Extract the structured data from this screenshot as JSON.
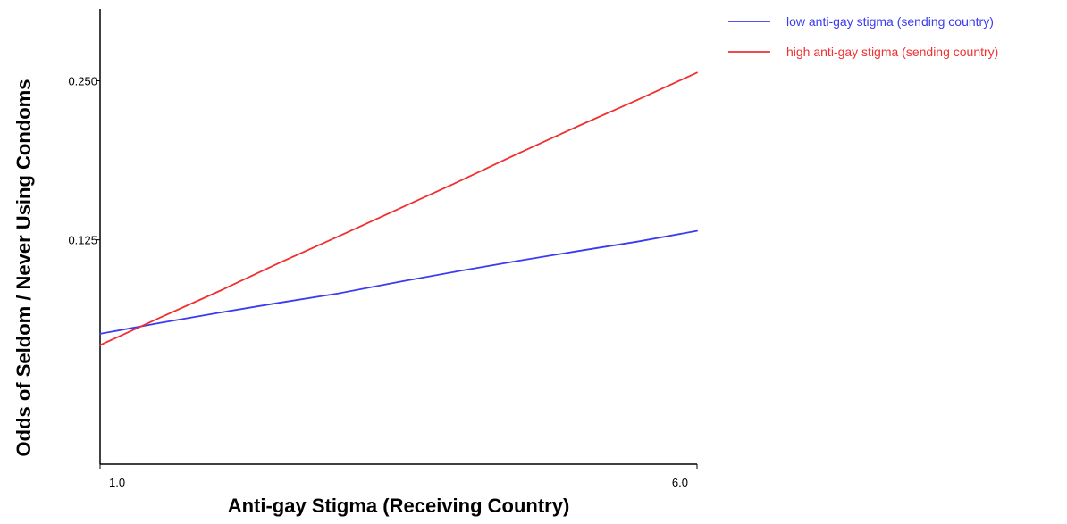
{
  "chart_data": {
    "type": "line",
    "title": "",
    "xlabel": "Anti-gay Stigma (Receiving Country)",
    "ylabel": "Odds of Seldom / Never Using Condoms",
    "xlim": [
      1.0,
      6.0
    ],
    "ylim": [
      0.047,
      0.342
    ],
    "y_scale": "log",
    "x_ticks": [
      {
        "value": 1.0,
        "label": "1.0"
      },
      {
        "value": 6.0,
        "label": "6.0"
      }
    ],
    "y_ticks": [
      {
        "value": 0.125,
        "label": "0.125"
      },
      {
        "value": 0.25,
        "label": "0.250"
      }
    ],
    "grid": false,
    "legend_position": "top-right",
    "series": [
      {
        "name": "low anti-gay stigma (sending country)",
        "color": "#3b3bf0",
        "x": [
          1.0,
          1.5,
          2.0,
          2.5,
          3.0,
          3.5,
          4.0,
          4.5,
          5.0,
          5.5,
          6.0
        ],
        "y": [
          0.083,
          0.087,
          0.091,
          0.095,
          0.099,
          0.104,
          0.109,
          0.114,
          0.119,
          0.124,
          0.13
        ]
      },
      {
        "name": "high anti-gay stigma (sending country)",
        "color": "#f03030",
        "x": [
          1.0,
          1.5,
          2.0,
          2.5,
          3.0,
          3.5,
          4.0,
          4.5,
          5.0,
          5.5,
          6.0
        ],
        "y": [
          0.079,
          0.089,
          0.1,
          0.113,
          0.127,
          0.143,
          0.161,
          0.182,
          0.205,
          0.23,
          0.259
        ]
      }
    ]
  }
}
